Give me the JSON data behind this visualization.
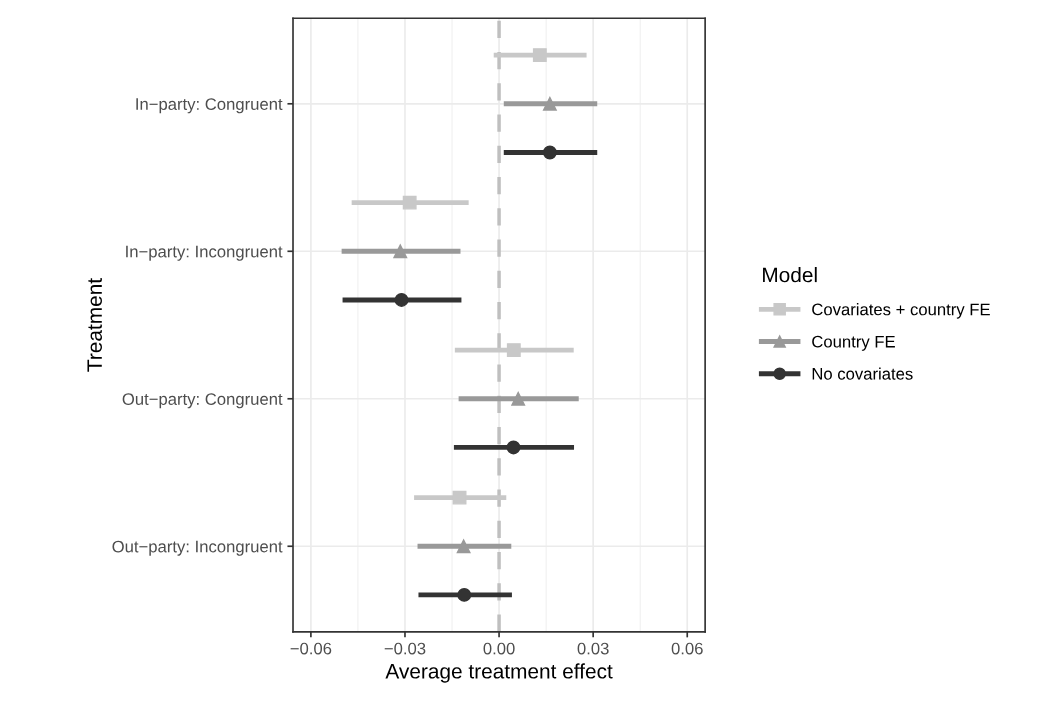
{
  "chart_data": {
    "type": "scatter",
    "orientation": "horizontal",
    "xlabel": "Average treatment effect",
    "ylabel": "Treatment",
    "legend_title": "Model",
    "categories": [
      "In−party: Congruent",
      "In−party: Incongruent",
      "Out−party: Congruent",
      "Out−party: Incongruent"
    ],
    "series": [
      {
        "name": "Covariates + country FE",
        "color": "#c8c8c8",
        "marker": "square",
        "values": [
          0.013,
          -0.0285,
          0.0047,
          -0.0126
        ],
        "errors": [
          [
            -0.0017,
            0.0279
          ],
          [
            -0.047,
            -0.0097
          ],
          [
            -0.0141,
            0.0238
          ],
          [
            -0.0271,
            0.0023
          ]
        ]
      },
      {
        "name": "Country FE",
        "color": "#999999",
        "marker": "triangle",
        "values": [
          0.0162,
          -0.0315,
          0.0061,
          -0.0113
        ],
        "errors": [
          [
            0.0015,
            0.0313
          ],
          [
            -0.0502,
            -0.0123
          ],
          [
            -0.0129,
            0.0254
          ],
          [
            -0.026,
            0.0039
          ]
        ]
      },
      {
        "name": "No covariates",
        "color": "#333333",
        "marker": "circle",
        "values": [
          0.0162,
          -0.0311,
          0.0046,
          -0.0111
        ],
        "errors": [
          [
            0.0015,
            0.0313
          ],
          [
            -0.0499,
            -0.012
          ],
          [
            -0.0144,
            0.0239
          ],
          [
            -0.0257,
            0.0041
          ]
        ]
      }
    ],
    "xlim": [
      -0.0657,
      0.0657
    ],
    "xticks": [
      {
        "value": -0.06,
        "label": "−0.06"
      },
      {
        "value": -0.03,
        "label": "−0.03"
      },
      {
        "value": 0,
        "label": "0.00"
      },
      {
        "value": 0.03,
        "label": "0.03"
      },
      {
        "value": 0.06,
        "label": "0.06"
      }
    ],
    "ref_lines": [
      {
        "axis": "x",
        "value": 0,
        "color": "#bfbfbf",
        "line_style": "dashed"
      }
    ],
    "grid": true,
    "legend": "right"
  }
}
